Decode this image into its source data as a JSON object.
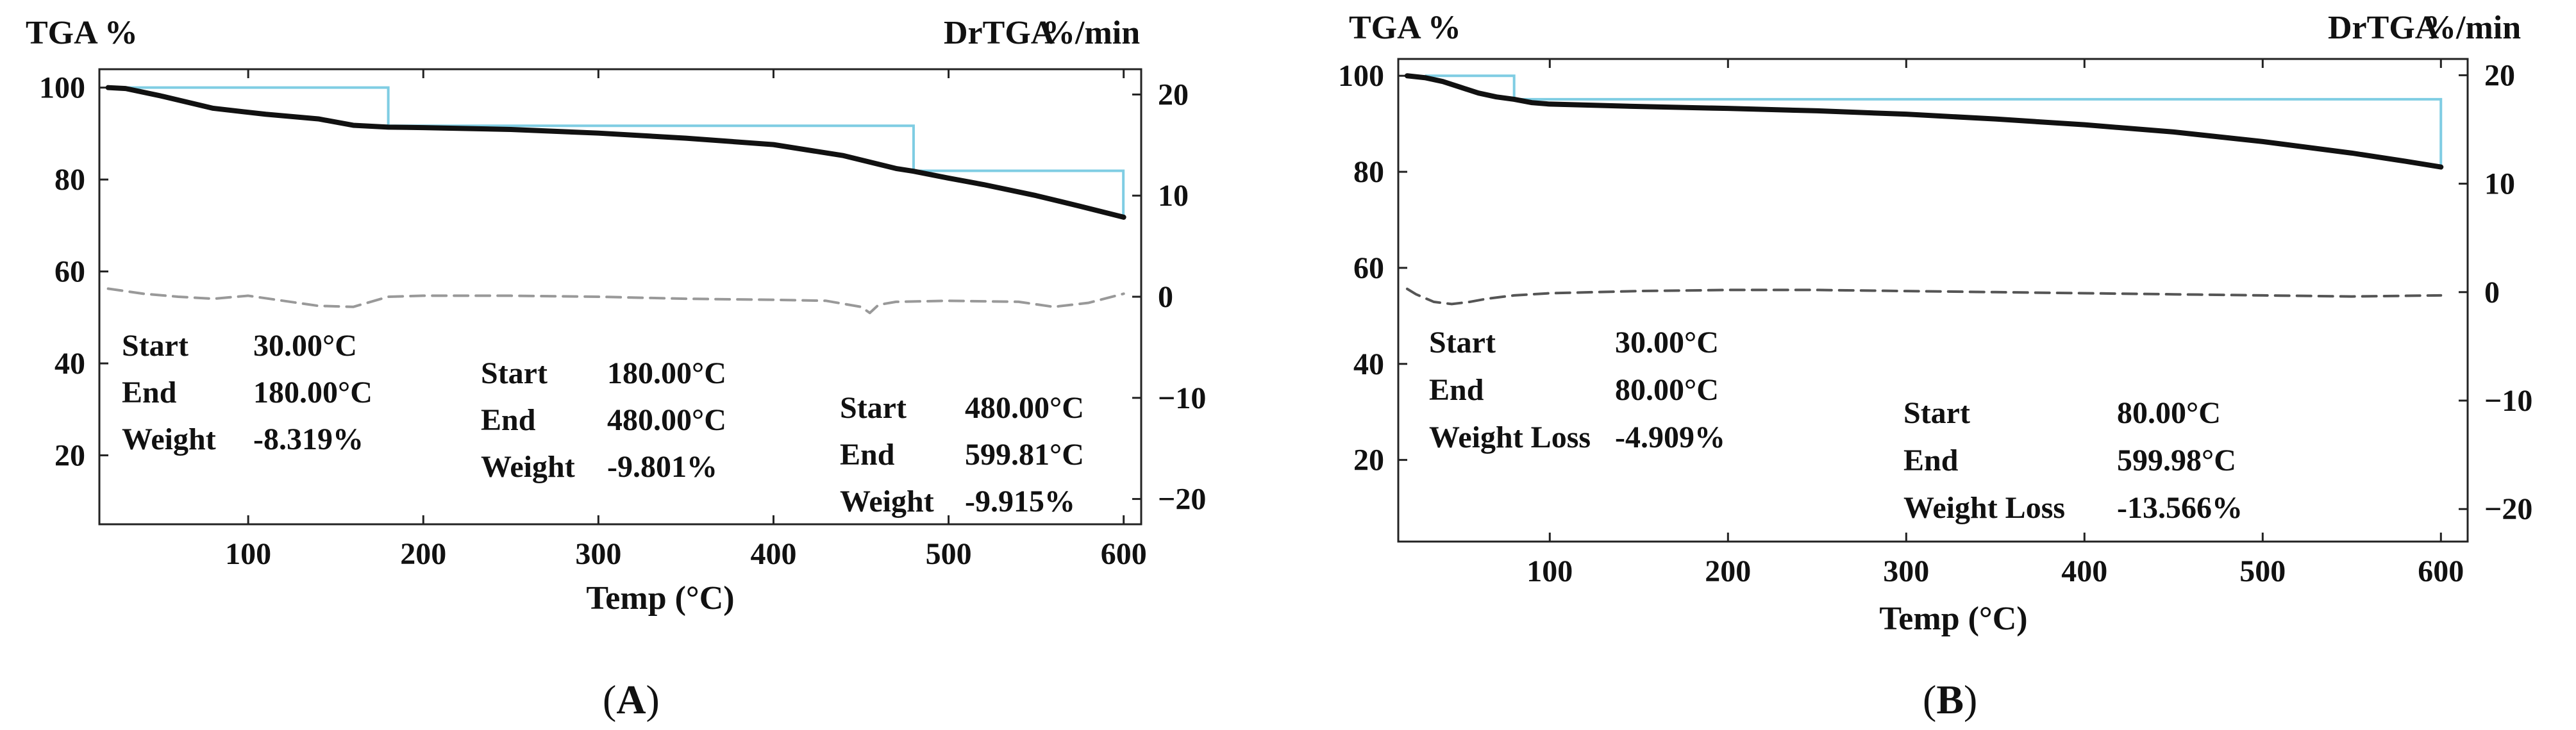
{
  "chart_data": [
    {
      "type": "line",
      "panel_label_open": "(",
      "panel_label_letter": "A",
      "panel_label_close": ")",
      "xlabel": "Temp (°C)",
      "ylabel_left": "TGA %",
      "ylabel_right_name": "DrTGA",
      "ylabel_right_unit": "%/min",
      "xlim": [
        15,
        610
      ],
      "ylim_left": [
        5,
        104
      ],
      "ylim_right": [
        -22.5,
        22.5
      ],
      "x_ticks": [
        100,
        200,
        300,
        400,
        500,
        600
      ],
      "y_left_ticks": [
        20,
        40,
        60,
        80,
        100
      ],
      "y_right_ticks": [
        20,
        10,
        0,
        -10,
        -20
      ],
      "y_right_tick_labels": [
        "20",
        "10",
        "0",
        "−10",
        "−20"
      ],
      "series": [
        {
          "name": "TGA",
          "color": "#111111",
          "x": [
            20,
            30,
            50,
            80,
            110,
            140,
            160,
            180,
            200,
            250,
            300,
            350,
            400,
            440,
            470,
            480,
            500,
            520,
            550,
            575,
            600
          ],
          "y": [
            100,
            99.8,
            98.2,
            95.5,
            94.2,
            93.2,
            91.8,
            91.4,
            91.3,
            90.9,
            90.1,
            89.0,
            87.6,
            85.2,
            82.4,
            81.8,
            80.3,
            78.9,
            76.5,
            74.2,
            71.8
          ]
        },
        {
          "name": "DrTGA",
          "color": "#999999",
          "dashed": true,
          "x": [
            20,
            40,
            60,
            80,
            100,
            120,
            140,
            160,
            180,
            200,
            250,
            300,
            350,
            400,
            430,
            450,
            455,
            460,
            470,
            500,
            540,
            560,
            570,
            580,
            600
          ],
          "y": [
            0.8,
            0.3,
            0.0,
            -0.2,
            0.1,
            -0.4,
            -0.9,
            -1.0,
            0.0,
            0.1,
            0.1,
            0.0,
            -0.2,
            -0.3,
            -0.4,
            -1.0,
            -1.6,
            -0.8,
            -0.5,
            -0.4,
            -0.5,
            -1.0,
            -0.8,
            -0.6,
            0.3
          ]
        }
      ],
      "steps": {
        "color": "#7fcde3",
        "segments": [
          {
            "x_start": 30,
            "x_end": 180,
            "y_level": 100,
            "y_bottom": 91.7
          },
          {
            "x_start": 180,
            "x_end": 480,
            "y_level": 91.7,
            "y_bottom": 81.9
          },
          {
            "x_start": 480,
            "x_end": 599.81,
            "y_level": 81.9,
            "y_bottom": 72.0
          }
        ]
      },
      "annotations": [
        {
          "labels": [
            "Start",
            "End",
            "Weight"
          ],
          "values": [
            "30.00°C",
            "180.00°C",
            "-8.319%"
          ]
        },
        {
          "labels": [
            "Start",
            "End",
            "Weight"
          ],
          "values": [
            "180.00°C",
            "480.00°C",
            "-9.801%"
          ]
        },
        {
          "labels": [
            "Start",
            "End",
            "Weight"
          ],
          "values": [
            "480.00°C",
            "599.81°C",
            "-9.915%"
          ]
        }
      ]
    },
    {
      "type": "line",
      "panel_label_open": "(",
      "panel_label_letter": "B",
      "panel_label_close": ")",
      "xlabel": "Temp (°C)",
      "ylabel_left": "TGA %",
      "ylabel_right_name": "DrTGA",
      "ylabel_right_unit": "%/min",
      "xlim": [
        15,
        615
      ],
      "ylim_left": [
        3,
        103.5
      ],
      "ylim_right": [
        -23,
        21.5
      ],
      "x_ticks": [
        100,
        200,
        300,
        400,
        500,
        600
      ],
      "y_left_ticks": [
        20,
        40,
        60,
        80,
        100
      ],
      "y_right_ticks": [
        20,
        10,
        0,
        -10,
        -20
      ],
      "y_right_tick_labels": [
        "20",
        "10",
        "0",
        "−10",
        "−20"
      ],
      "series": [
        {
          "name": "TGA",
          "color": "#111111",
          "x": [
            20,
            30,
            40,
            50,
            60,
            70,
            80,
            90,
            100,
            150,
            200,
            250,
            300,
            350,
            400,
            450,
            500,
            550,
            580,
            600
          ],
          "y": [
            100,
            99.6,
            98.8,
            97.6,
            96.4,
            95.6,
            95.1,
            94.4,
            94.1,
            93.6,
            93.2,
            92.7,
            92.0,
            91.0,
            89.8,
            88.3,
            86.3,
            83.9,
            82.2,
            81.0
          ]
        },
        {
          "name": "DrTGA",
          "color": "#555555",
          "dashed": true,
          "x": [
            20,
            25,
            35,
            45,
            55,
            65,
            80,
            100,
            150,
            200,
            250,
            300,
            350,
            400,
            450,
            500,
            550,
            600
          ],
          "y": [
            0.3,
            -0.2,
            -0.9,
            -1.1,
            -0.9,
            -0.6,
            -0.3,
            -0.1,
            0.1,
            0.2,
            0.2,
            0.1,
            0.0,
            -0.1,
            -0.2,
            -0.3,
            -0.4,
            -0.3
          ]
        }
      ],
      "steps": {
        "color": "#7fcde3",
        "segments": [
          {
            "x_start": 30,
            "x_end": 80,
            "y_level": 100,
            "y_bottom": 95.1
          },
          {
            "x_start": 80,
            "x_end": 599.98,
            "y_level": 95.1,
            "y_bottom": 81.5
          }
        ]
      },
      "annotations": [
        {
          "labels": [
            "Start",
            "End",
            "Weight Loss"
          ],
          "values": [
            "30.00°C",
            "80.00°C",
            "-4.909%"
          ]
        },
        {
          "labels": [
            "Start",
            "End",
            "Weight Loss"
          ],
          "values": [
            "80.00°C",
            "599.98°C",
            "-13.566%"
          ]
        }
      ]
    }
  ]
}
